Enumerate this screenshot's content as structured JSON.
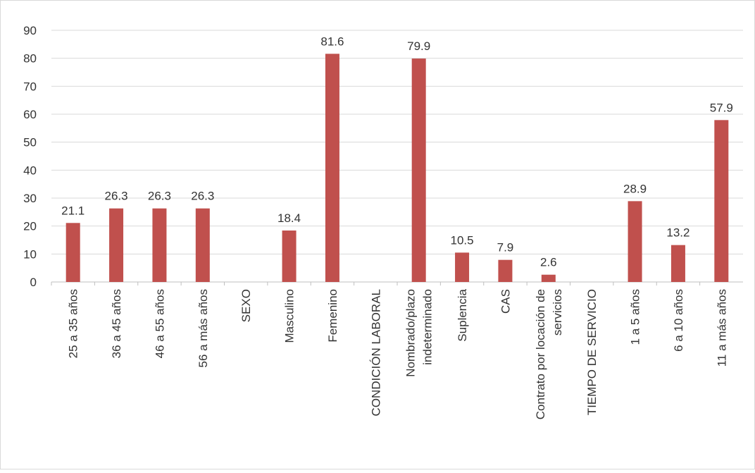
{
  "chart_data": {
    "type": "bar",
    "categories": [
      [
        "25 a 35 años"
      ],
      [
        "36 a 45 años"
      ],
      [
        "46 a 55 años"
      ],
      [
        "56 a más años"
      ],
      [
        "SEXO"
      ],
      [
        "Masculino"
      ],
      [
        "Femenino"
      ],
      [
        "CONDICIÓN LABORAL"
      ],
      [
        "Nombrado/plazo",
        "indeterminado"
      ],
      [
        "Suplencia"
      ],
      [
        "CAS"
      ],
      [
        "Contrato por locación de",
        "servicios"
      ],
      [
        "TIEMPO DE SERVICIO"
      ],
      [
        "1 a 5 años"
      ],
      [
        "6 a 10 años"
      ],
      [
        "11 a más años"
      ]
    ],
    "values": [
      21.1,
      26.3,
      26.3,
      26.3,
      null,
      18.4,
      81.6,
      null,
      79.9,
      10.5,
      7.9,
      2.6,
      null,
      28.9,
      13.2,
      57.9
    ],
    "data_labels": [
      "21.1",
      "26.3",
      "26.3",
      "26.3",
      "",
      "18.4",
      "81.6",
      "",
      "79.9",
      "10.5",
      "7.9",
      "2.6",
      "",
      "28.9",
      "13.2",
      "57.9"
    ],
    "ylim": [
      0,
      90
    ],
    "yticks": [
      0,
      10,
      20,
      30,
      40,
      50,
      60,
      70,
      80,
      90
    ],
    "grid": true,
    "legend": "none",
    "colors": {
      "bar": "#C0504D",
      "grid": "#D9D9D9",
      "axis": "#BFBFBF",
      "text": "#333333"
    }
  }
}
